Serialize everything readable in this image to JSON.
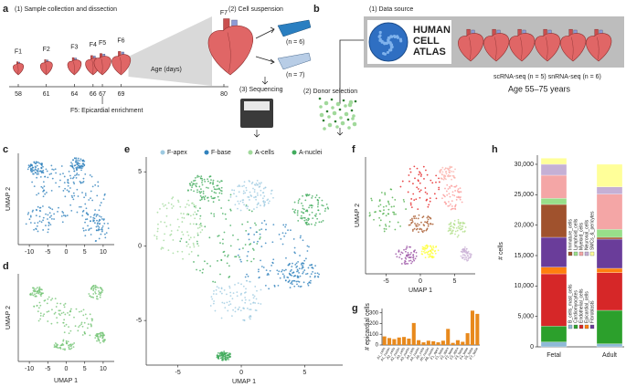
{
  "panels": [
    "a",
    "b",
    "c",
    "d",
    "e",
    "f",
    "g",
    "h"
  ],
  "panel_a": {
    "step1": "(1) Sample collection and dissection",
    "samples": [
      "F1",
      "F2",
      "F3",
      "F4",
      "F5",
      "F6",
      "F7"
    ],
    "ages": [
      58,
      61,
      64,
      66,
      67,
      69,
      80
    ],
    "age_axis": "Age (days)",
    "note": "F5: Epicardial enrichment",
    "step2": "(2) Cell suspension",
    "n1": "(n = 6)",
    "n2": "(n = 7)",
    "step3": "(3) Sequencing"
  },
  "panel_b": {
    "step1": "(1) Data source",
    "atlas": [
      "HUMAN",
      "CELL",
      "ATLAS"
    ],
    "assays": "scRNA-seq (n = 5) snRNA-seq (n = 6)",
    "age": "Age 55–75 years",
    "step2": "(2) Donor selection"
  },
  "umaps": {
    "c": {
      "ylabel": "UMAP 2",
      "xlim": [
        -13,
        13
      ],
      "xticks": [
        -10,
        -5,
        0,
        5,
        10
      ]
    },
    "d": {
      "xlabel": "UMAP 1",
      "ylabel": "UMAP 2",
      "xlim": [
        -13,
        13
      ],
      "xticks": [
        -10,
        -5,
        0,
        5,
        10
      ]
    },
    "e": {
      "xlabel": "UMAP 1",
      "xlim": [
        -7.5,
        8
      ],
      "ylim": [
        -8,
        6
      ],
      "xticks": [
        -5,
        0,
        5
      ],
      "yticks": [
        -5,
        0,
        5
      ],
      "legend": [
        {
          "name": "F-apex",
          "color": "#9ecae1"
        },
        {
          "name": "F-base",
          "color": "#3182bd"
        },
        {
          "name": "A-cells",
          "color": "#a1d99b"
        },
        {
          "name": "A-nuclei",
          "color": "#41ab5d"
        }
      ]
    },
    "f": {
      "xlabel": "UMAP 1",
      "ylabel": "UMAP 2",
      "xlim": [
        -8,
        8
      ],
      "xticks": [
        -5,
        0,
        5
      ]
    }
  },
  "chart_data": [
    {
      "type": "bar",
      "ylabel": "# epicardial cells",
      "categories": [
        "A1_cells",
        "A1_nuclei",
        "A2_cells",
        "A2_nuclei",
        "A3_cells",
        "A3_nuclei",
        "A4_cells",
        "A4_nuclei",
        "A5_cells",
        "A5_nuclei",
        "A6_nuclei",
        "F1_apex",
        "F1_base",
        "F2_apex",
        "F2_base",
        "F3_apex",
        "F3_base",
        "F4_base",
        "F5_base",
        "F7_base"
      ],
      "values": [
        80,
        65,
        55,
        70,
        75,
        60,
        205,
        45,
        25,
        40,
        35,
        25,
        40,
        150,
        20,
        45,
        30,
        110,
        320,
        290
      ],
      "color": "#e8891c",
      "ylim": [
        0,
        340
      ],
      "yticks": [
        0,
        100,
        200,
        300
      ]
    },
    {
      "type": "stacked_bar",
      "ylabel": "# cells",
      "categories": [
        "Fetal",
        "Adult"
      ],
      "ylim": [
        0,
        31500
      ],
      "yticks": [
        0,
        {
          "value": 5000,
          "label": "5,000"
        },
        {
          "value": 10000,
          "label": "10,000"
        },
        {
          "value": 15000,
          "label": "15,000"
        },
        {
          "value": 20000,
          "label": "20,000"
        },
        {
          "value": 25000,
          "label": "25,000"
        },
        {
          "value": 30000,
          "label": "30,000"
        }
      ],
      "series": [
        {
          "name": "B_cells_mast_cells",
          "color": "#8fb9d6",
          "values": [
            800,
            500
          ]
        },
        {
          "name": "Cardiomyocytes",
          "color": "#2ca02c",
          "values": [
            2600,
            5500
          ]
        },
        {
          "name": "Endothelial_cells",
          "color": "#d62728",
          "values": [
            8600,
            6200
          ]
        },
        {
          "name": "Epicardial_cells",
          "color": "#ff7f0e",
          "values": [
            1100,
            700
          ]
        },
        {
          "name": "Fibroblasts",
          "color": "#6a3d9a",
          "values": [
            4900,
            4800
          ]
        },
        {
          "name": "Immature_cells",
          "color": "#a0522d",
          "values": [
            5400,
            300
          ]
        },
        {
          "name": "Lymphoid_cells",
          "color": "#98df8a",
          "values": [
            1000,
            1300
          ]
        },
        {
          "name": "Myeloid_cells",
          "color": "#f4a6a6",
          "values": [
            3800,
            5800
          ]
        },
        {
          "name": "Neuronal_cells",
          "color": "#c5b0d5",
          "values": [
            1800,
            1200
          ]
        },
        {
          "name": "SMCs_&_pericytes",
          "color": "#ffff99",
          "values": [
            1000,
            3700
          ]
        }
      ]
    }
  ]
}
